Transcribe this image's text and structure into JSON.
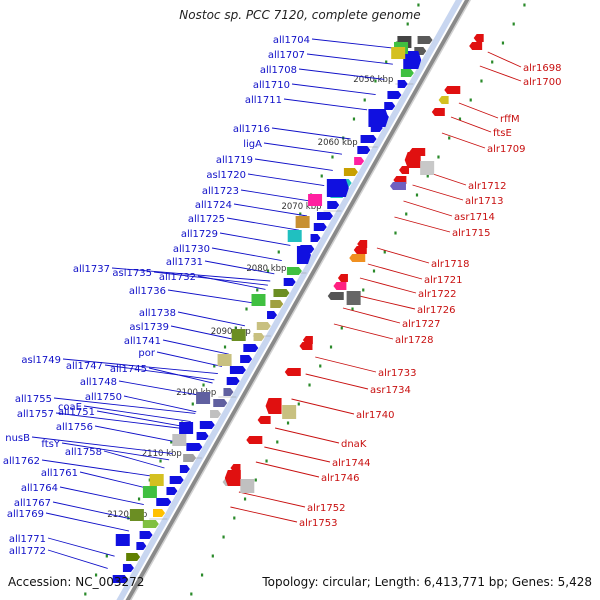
{
  "title": "Nostoc sp. PCC 7120, complete genome",
  "footer": {
    "accession": "Accession: NC_003272",
    "summary": "Topology: circular; Length: 6,413,771 bp; Genes: 5,428"
  },
  "colors": {
    "reverse_label": "#1010c8",
    "forward_label": "#c81010",
    "reverse_arrow": "#1010e0",
    "forward_arrow": "#e01010",
    "tick_marks": "#2a8a2a",
    "backbone": "#8a8a8a"
  },
  "kbp_markers": [
    "2050 kbp",
    "2060 kbp",
    "2070 kbp",
    "2080 kbp",
    "2090 kbp",
    "2100 kbp",
    "2110 kbp",
    "2120 kbp"
  ],
  "reverse_genes": [
    "all1704",
    "all1707",
    "all1708",
    "all1710",
    "all1711",
    "all1716",
    "ligA",
    "all1719",
    "asl1720",
    "all1723",
    "all1724",
    "all1725",
    "all1729",
    "all1730",
    "all1731",
    "all1737",
    "asl1735",
    "all1732",
    "all1736",
    "all1738",
    "asl1739",
    "all1741",
    "por",
    "asl1749",
    "all1747",
    "all1745",
    "all1748",
    "all1755",
    "coaE",
    "all1750",
    "all1757",
    "all1751",
    "all1756",
    "nusB",
    "ftsY",
    "all1758",
    "all1762",
    "all1761",
    "all1764",
    "all1767",
    "all1769",
    "all1771",
    "all1772"
  ],
  "forward_genes": [
    "alr1698",
    "alr1700",
    "rffM",
    "ftsE",
    "alr1709",
    "alr1712",
    "alr1713",
    "asr1714",
    "alr1715",
    "alr1718",
    "alr1721",
    "alr1722",
    "alr1726",
    "alr1727",
    "alr1728",
    "alr1733",
    "asr1734",
    "alr1740",
    "dnaK",
    "alr1744",
    "alr1746",
    "alr1752",
    "alr1753"
  ]
}
